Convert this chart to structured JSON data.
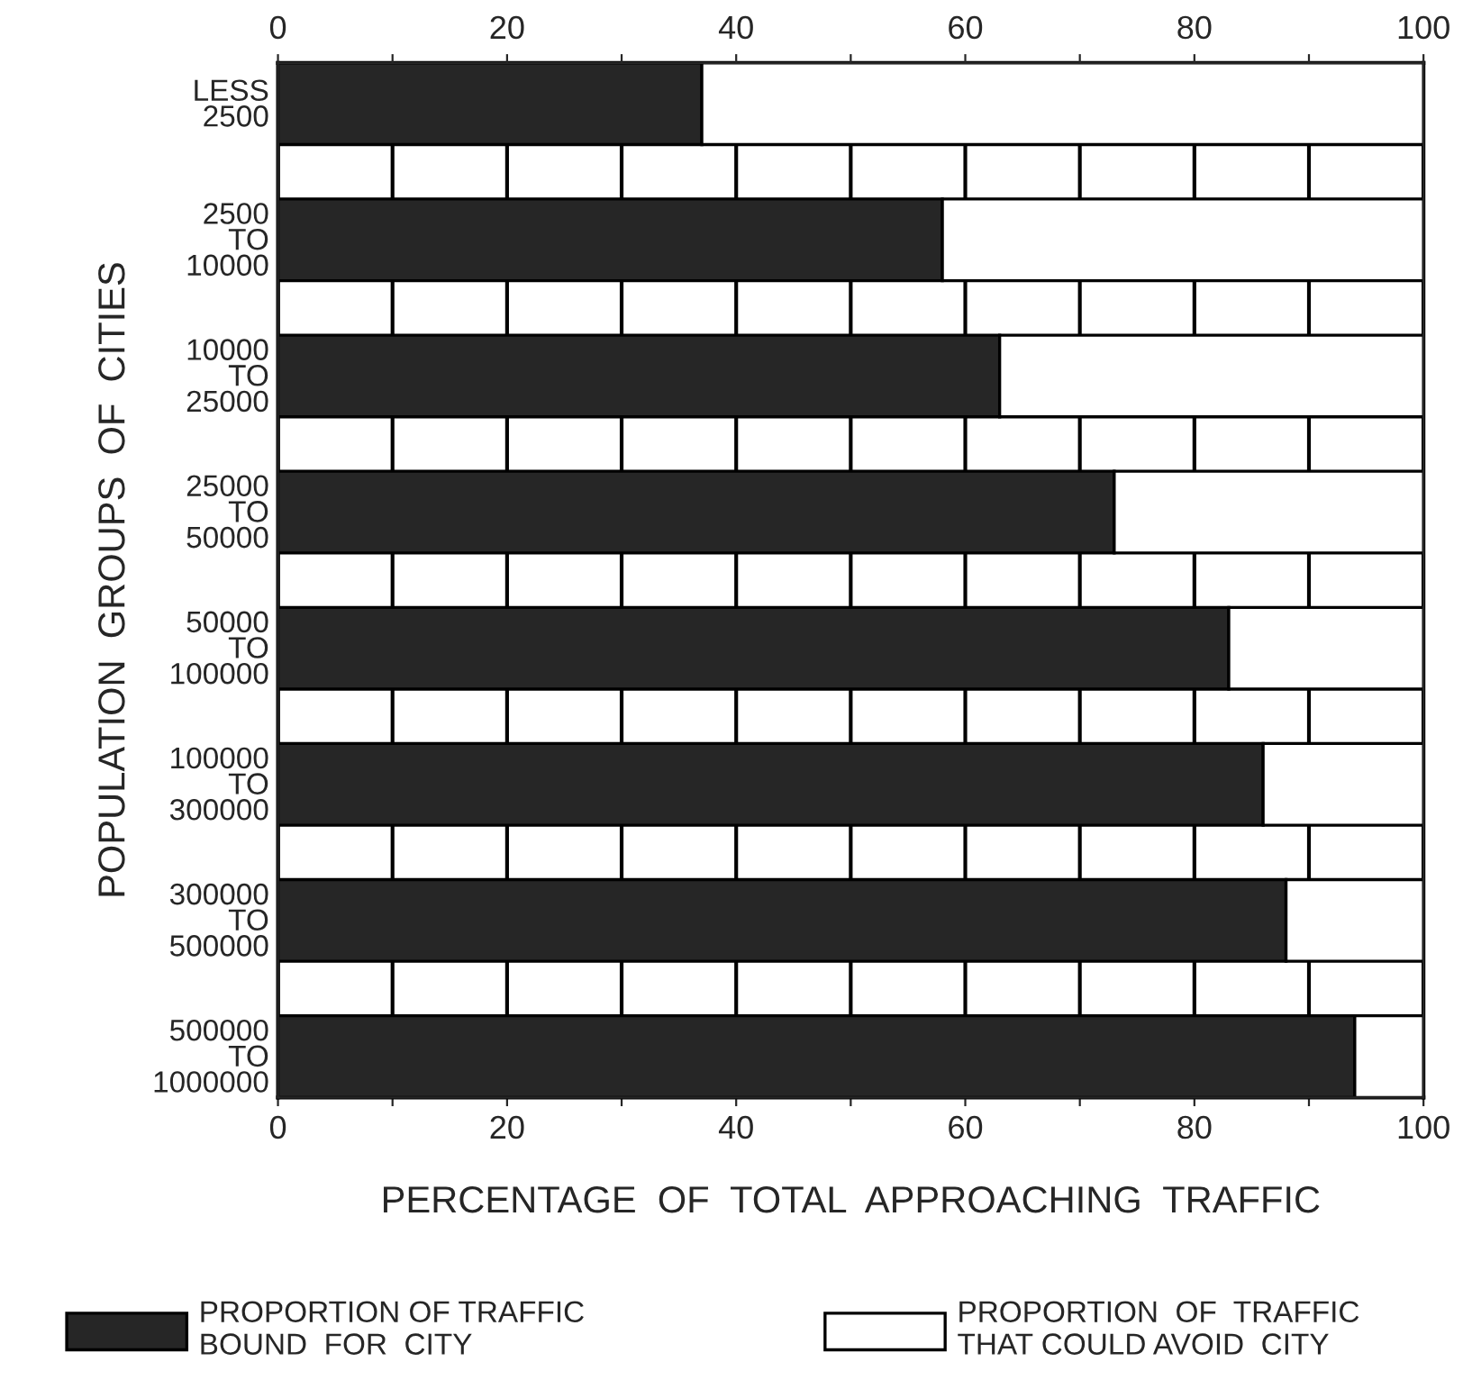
{
  "chart_data": {
    "type": "bar",
    "orientation": "horizontal",
    "stacked": true,
    "ylabel": "POPULATION  GROUPS  OF  CITIES",
    "xlabel": "PERCENTAGE  OF  TOTAL  APPROACHING  TRAFFIC",
    "categories": [
      "LESS\n2500",
      "2500\nTO\n10000",
      "10000\nTO\n25000",
      "25000\nTO\n50000",
      "50000\nTO\n100000",
      "100000\nTO\n300000",
      "300000\nTO\n500000",
      "500000\nTO\n1000000"
    ],
    "series": [
      {
        "name": "PROPORTION OF TRAFFIC\nBOUND  FOR  CITY",
        "color": "#262626",
        "values": [
          37,
          58,
          63,
          73,
          83,
          86,
          88,
          94
        ]
      },
      {
        "name": "PROPORTION  OF  TRAFFIC\nTHAT COULD AVOID  CITY",
        "color": "#ffffff",
        "values": [
          63,
          42,
          37,
          27,
          17,
          14,
          12,
          6
        ]
      }
    ],
    "xlim": [
      0,
      100
    ],
    "xticks": [
      0,
      {
        "value": 10,
        "label": null
      },
      20,
      {
        "value": 30,
        "label": null
      },
      40,
      {
        "value": 50,
        "label": null
      },
      60,
      {
        "value": 70,
        "label": null
      },
      80,
      {
        "value": 90,
        "label": null
      },
      100
    ],
    "x2lim": [
      0,
      100
    ],
    "x2ticks": [
      0,
      {
        "value": 10,
        "label": null
      },
      20,
      {
        "value": 30,
        "label": null
      },
      40,
      {
        "value": 50,
        "label": null
      },
      60,
      {
        "value": 70,
        "label": null
      },
      80,
      {
        "value": 90,
        "label": null
      },
      100
    ],
    "grid": "x",
    "legend": "bottom"
  }
}
